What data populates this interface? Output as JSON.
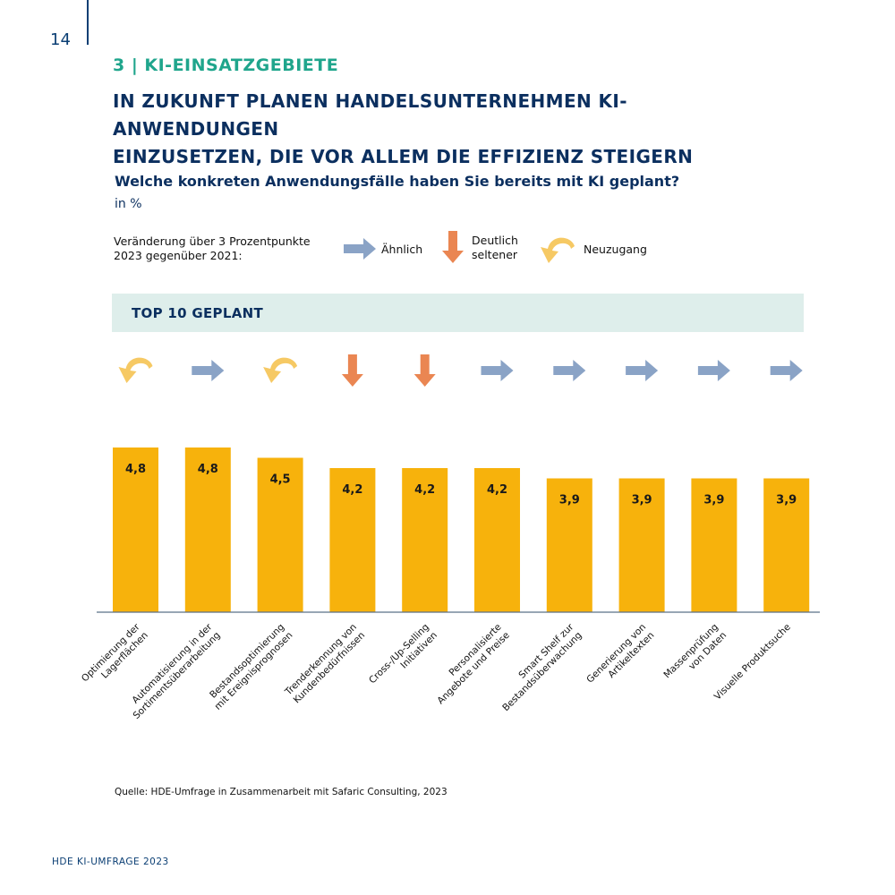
{
  "page_number": "14",
  "section_title": "3 | KI-EINSATZGEBIETE",
  "headline_line1": "IN ZUKUNFT PLANEN HANDELSUNTERNEHMEN KI-ANWENDUNGEN",
  "headline_line2": "EINZUSETZEN, DIE VOR ALLEM DIE EFFIZIENZ STEIGERN",
  "question": "Welche konkreten Anwendungsfälle haben Sie bereits mit KI geplant?",
  "unit": "in %",
  "legend": {
    "intro_line1": "Veränderung über 3 Prozentpunkte",
    "intro_line2": "2023 gegenüber 2021:",
    "similar": "Ähnlich",
    "less_line1": "Deutlich",
    "less_line2": "seltener",
    "new": "Neuzugang"
  },
  "banner_title": "TOP 10 GEPLANT",
  "colors": {
    "bar": "#f7b20c",
    "arrow_similar": "#8aa3c6",
    "arrow_less": "#ea8652",
    "arrow_new": "#f6c964",
    "accent": "#1fa58c",
    "navy": "#0b2f5f"
  },
  "chart_data": {
    "type": "bar",
    "categories": [
      [
        "Optimierung der",
        "Lagerflächen"
      ],
      [
        "Automatisierung in der",
        "Sortimentsüberarbeitung"
      ],
      [
        "Bestandsoptimierung",
        "mit Ereignisprognosen"
      ],
      [
        "Trenderkennung von",
        "Kundenbedürfnissen"
      ],
      [
        "Cross-/Up-Selling",
        "Initiativen"
      ],
      [
        "Personalisierte",
        "Angebote und Preise"
      ],
      [
        "Smart Shelf zur",
        "Bestandsüberwachung"
      ],
      [
        "Generierung von",
        "Artikeltexten"
      ],
      [
        "Massenprüfung",
        "von Daten"
      ],
      [
        "Visuelle Produktsuche"
      ]
    ],
    "values": [
      4.8,
      4.8,
      4.5,
      4.2,
      4.2,
      4.2,
      3.9,
      3.9,
      3.9,
      3.9
    ],
    "value_labels": [
      "4,8",
      "4,8",
      "4,5",
      "4,2",
      "4,2",
      "4,2",
      "3,9",
      "3,9",
      "3,9",
      "3,9"
    ],
    "trend": [
      "new",
      "similar",
      "new",
      "less",
      "less",
      "similar",
      "similar",
      "similar",
      "similar",
      "similar"
    ],
    "ylim": [
      0,
      4.8
    ],
    "grid": false
  },
  "source": "Quelle: HDE-Umfrage in Zusammenarbeit mit Safaric Consulting, 2023",
  "footer": "HDE KI-UMFRAGE 2023"
}
